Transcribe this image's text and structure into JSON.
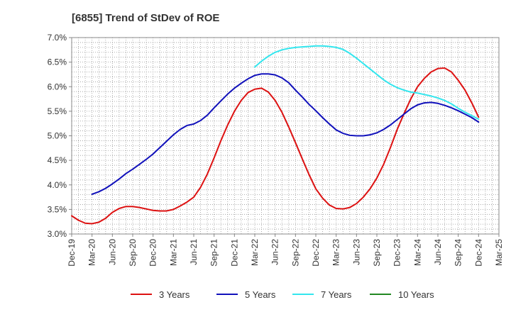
{
  "chart_data": {
    "type": "line",
    "title": "[6855]  Trend of StDev of ROE",
    "xlabel": "",
    "ylabel": "",
    "x_ticks": [
      "Dec-19",
      "Mar-20",
      "Jun-20",
      "Sep-20",
      "Dec-20",
      "Mar-21",
      "Jun-21",
      "Sep-21",
      "Dec-21",
      "Mar-22",
      "Jun-22",
      "Sep-22",
      "Dec-22",
      "Mar-23",
      "Jun-23",
      "Sep-23",
      "Dec-23",
      "Mar-24",
      "Jun-24",
      "Sep-24",
      "Dec-24",
      "Mar-25"
    ],
    "y_ticks": [
      "3.0%",
      "3.5%",
      "4.0%",
      "4.5%",
      "5.0%",
      "5.5%",
      "6.0%",
      "6.5%",
      "7.0%"
    ],
    "ylim": [
      3.0,
      7.0
    ],
    "y_unit": "%",
    "grid": true,
    "legend_position": "bottom",
    "series": [
      {
        "name": "3 Years",
        "color": "#dd1111",
        "points": [
          [
            "Dec-19",
            3.37
          ],
          [
            "Jan-20",
            3.28
          ],
          [
            "Feb-20",
            3.22
          ],
          [
            "Mar-20",
            3.21
          ],
          [
            "Apr-20",
            3.24
          ],
          [
            "May-20",
            3.32
          ],
          [
            "Jun-20",
            3.44
          ],
          [
            "Jul-20",
            3.52
          ],
          [
            "Aug-20",
            3.56
          ],
          [
            "Sep-20",
            3.56
          ],
          [
            "Oct-20",
            3.54
          ],
          [
            "Nov-20",
            3.51
          ],
          [
            "Dec-20",
            3.48
          ],
          [
            "Jan-21",
            3.47
          ],
          [
            "Feb-21",
            3.47
          ],
          [
            "Mar-21",
            3.5
          ],
          [
            "Apr-21",
            3.57
          ],
          [
            "May-21",
            3.65
          ],
          [
            "Jun-21",
            3.75
          ],
          [
            "Jul-21",
            3.95
          ],
          [
            "Aug-21",
            4.22
          ],
          [
            "Sep-21",
            4.55
          ],
          [
            "Oct-21",
            4.9
          ],
          [
            "Nov-21",
            5.22
          ],
          [
            "Dec-21",
            5.5
          ],
          [
            "Jan-22",
            5.72
          ],
          [
            "Feb-22",
            5.88
          ],
          [
            "Mar-22",
            5.95
          ],
          [
            "Apr-22",
            5.97
          ],
          [
            "May-22",
            5.89
          ],
          [
            "Jun-22",
            5.72
          ],
          [
            "Jul-22",
            5.48
          ],
          [
            "Aug-22",
            5.18
          ],
          [
            "Sep-22",
            4.86
          ],
          [
            "Oct-22",
            4.53
          ],
          [
            "Nov-22",
            4.21
          ],
          [
            "Dec-22",
            3.92
          ],
          [
            "Jan-23",
            3.73
          ],
          [
            "Feb-23",
            3.59
          ],
          [
            "Mar-23",
            3.52
          ],
          [
            "Apr-23",
            3.51
          ],
          [
            "May-23",
            3.54
          ],
          [
            "Jun-23",
            3.62
          ],
          [
            "Jul-23",
            3.75
          ],
          [
            "Aug-23",
            3.92
          ],
          [
            "Sep-23",
            4.14
          ],
          [
            "Oct-23",
            4.42
          ],
          [
            "Nov-23",
            4.76
          ],
          [
            "Dec-23",
            5.13
          ],
          [
            "Jan-24",
            5.45
          ],
          [
            "Feb-24",
            5.75
          ],
          [
            "Mar-24",
            6.0
          ],
          [
            "Apr-24",
            6.17
          ],
          [
            "May-24",
            6.3
          ],
          [
            "Jun-24",
            6.37
          ],
          [
            "Jul-24",
            6.38
          ],
          [
            "Aug-24",
            6.3
          ],
          [
            "Sep-24",
            6.13
          ],
          [
            "Oct-24",
            5.93
          ],
          [
            "Nov-24",
            5.67
          ],
          [
            "Dec-24",
            5.38
          ]
        ]
      },
      {
        "name": "5 Years",
        "color": "#1111bb",
        "points": [
          [
            "Mar-20",
            3.81
          ],
          [
            "Apr-20",
            3.86
          ],
          [
            "May-20",
            3.93
          ],
          [
            "Jun-20",
            4.02
          ],
          [
            "Jul-20",
            4.12
          ],
          [
            "Aug-20",
            4.23
          ],
          [
            "Sep-20",
            4.32
          ],
          [
            "Oct-20",
            4.42
          ],
          [
            "Nov-20",
            4.52
          ],
          [
            "Dec-20",
            4.63
          ],
          [
            "Jan-21",
            4.76
          ],
          [
            "Feb-21",
            4.89
          ],
          [
            "Mar-21",
            5.02
          ],
          [
            "Apr-21",
            5.13
          ],
          [
            "May-21",
            5.21
          ],
          [
            "Jun-21",
            5.24
          ],
          [
            "Jul-21",
            5.31
          ],
          [
            "Aug-21",
            5.42
          ],
          [
            "Sep-21",
            5.57
          ],
          [
            "Oct-21",
            5.71
          ],
          [
            "Nov-21",
            5.85
          ],
          [
            "Dec-21",
            5.97
          ],
          [
            "Jan-22",
            6.07
          ],
          [
            "Feb-22",
            6.16
          ],
          [
            "Mar-22",
            6.23
          ],
          [
            "Apr-22",
            6.26
          ],
          [
            "May-22",
            6.26
          ],
          [
            "Jun-22",
            6.24
          ],
          [
            "Jul-22",
            6.18
          ],
          [
            "Aug-22",
            6.08
          ],
          [
            "Sep-22",
            5.93
          ],
          [
            "Oct-22",
            5.79
          ],
          [
            "Nov-22",
            5.64
          ],
          [
            "Dec-22",
            5.51
          ],
          [
            "Jan-23",
            5.37
          ],
          [
            "Feb-23",
            5.24
          ],
          [
            "Mar-23",
            5.12
          ],
          [
            "Apr-23",
            5.05
          ],
          [
            "May-23",
            5.01
          ],
          [
            "Jun-23",
            5.0
          ],
          [
            "Jul-23",
            5.0
          ],
          [
            "Aug-23",
            5.02
          ],
          [
            "Sep-23",
            5.06
          ],
          [
            "Oct-23",
            5.13
          ],
          [
            "Nov-23",
            5.22
          ],
          [
            "Dec-23",
            5.33
          ],
          [
            "Jan-24",
            5.44
          ],
          [
            "Feb-24",
            5.55
          ],
          [
            "Mar-24",
            5.63
          ],
          [
            "Apr-24",
            5.67
          ],
          [
            "May-24",
            5.68
          ],
          [
            "Jun-24",
            5.66
          ],
          [
            "Jul-24",
            5.62
          ],
          [
            "Aug-24",
            5.57
          ],
          [
            "Sep-24",
            5.51
          ],
          [
            "Oct-24",
            5.44
          ],
          [
            "Nov-24",
            5.37
          ],
          [
            "Dec-24",
            5.28
          ]
        ]
      },
      {
        "name": "7 Years",
        "color": "#33e6ee",
        "points": [
          [
            "Mar-22",
            6.4
          ],
          [
            "Apr-22",
            6.52
          ],
          [
            "May-22",
            6.62
          ],
          [
            "Jun-22",
            6.7
          ],
          [
            "Jul-22",
            6.75
          ],
          [
            "Aug-22",
            6.78
          ],
          [
            "Sep-22",
            6.8
          ],
          [
            "Oct-22",
            6.81
          ],
          [
            "Nov-22",
            6.82
          ],
          [
            "Dec-22",
            6.83
          ],
          [
            "Jan-23",
            6.83
          ],
          [
            "Feb-23",
            6.82
          ],
          [
            "Mar-23",
            6.8
          ],
          [
            "Apr-23",
            6.76
          ],
          [
            "May-23",
            6.68
          ],
          [
            "Jun-23",
            6.58
          ],
          [
            "Jul-23",
            6.47
          ],
          [
            "Aug-23",
            6.36
          ],
          [
            "Sep-23",
            6.25
          ],
          [
            "Oct-23",
            6.14
          ],
          [
            "Nov-23",
            6.05
          ],
          [
            "Dec-23",
            5.98
          ],
          [
            "Jan-24",
            5.93
          ],
          [
            "Feb-24",
            5.89
          ],
          [
            "Mar-24",
            5.87
          ],
          [
            "Apr-24",
            5.84
          ],
          [
            "May-24",
            5.81
          ],
          [
            "Jun-24",
            5.77
          ],
          [
            "Jul-24",
            5.72
          ],
          [
            "Aug-24",
            5.65
          ],
          [
            "Sep-24",
            5.56
          ],
          [
            "Oct-24",
            5.48
          ],
          [
            "Nov-24",
            5.41
          ],
          [
            "Dec-24",
            5.34
          ]
        ]
      },
      {
        "name": "10 Years",
        "color": "#228822",
        "points": []
      }
    ]
  }
}
